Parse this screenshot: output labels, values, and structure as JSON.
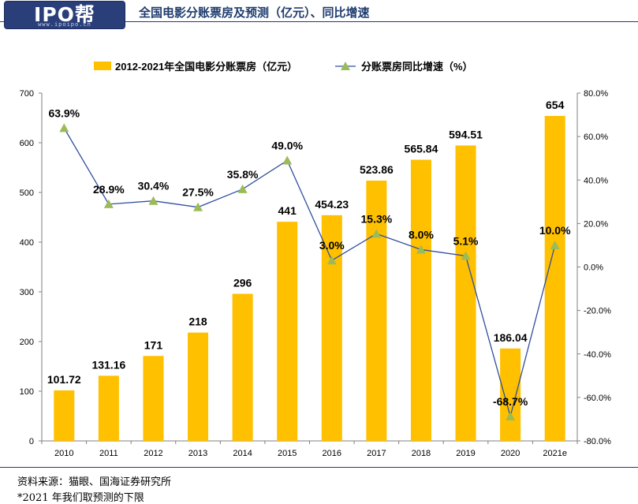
{
  "doc_title": "全国电影分账票房及预测（亿元）、同比增速",
  "logo": {
    "text": "IPO帮",
    "sub": "www.ipoipo.cn"
  },
  "footer": {
    "source": "资料来源：猫眼、国海证券研究所",
    "note": "*2021 年我们取预测的下限"
  },
  "colors": {
    "bar": "#FFC000",
    "line": "#2F4F9E",
    "marker": "#9BBB59",
    "axis": "#808080",
    "title": "#1f3c6e"
  },
  "chart_data": {
    "type": "bar",
    "categories": [
      "2010",
      "2011",
      "2012",
      "2013",
      "2014",
      "2015",
      "2016",
      "2017",
      "2018",
      "2019",
      "2020",
      "2021e"
    ],
    "series": [
      {
        "name": "2012-2021年全国电影分账票房（亿元）",
        "kind": "bar",
        "axis": "left",
        "values": [
          101.72,
          131.16,
          171,
          218,
          296,
          441,
          454.23,
          523.86,
          565.84,
          594.51,
          186.04,
          654
        ],
        "labels": [
          "101.72",
          "131.16",
          "171",
          "218",
          "296",
          "441",
          "454.23",
          "523.86",
          "565.84",
          "594.51",
          "186.04",
          "654"
        ]
      },
      {
        "name": "分账票房同比增速（%）",
        "kind": "line",
        "axis": "right",
        "values": [
          63.9,
          28.9,
          30.4,
          27.5,
          35.8,
          49.0,
          3.0,
          15.3,
          8.0,
          5.1,
          -68.7,
          10.0
        ],
        "labels": [
          "63.9%",
          "28.9%",
          "30.4%",
          "27.5%",
          "35.8%",
          "49.0%",
          "3.0%",
          "15.3%",
          "8.0%",
          "5.1%",
          "-68.7%",
          "10.0%"
        ]
      }
    ],
    "y_left": {
      "ylim": [
        0,
        700
      ],
      "ticks": [
        "0",
        "100",
        "200",
        "300",
        "400",
        "500",
        "600",
        "700"
      ]
    },
    "y_right": {
      "ylim": [
        -80,
        80
      ],
      "ticks": [
        "80.0%",
        "60.0%",
        "40.0%",
        "20.0%",
        "0.0%",
        "-20.0%",
        "-40.0%",
        "-60.0%",
        "-80.0%"
      ]
    },
    "legend_position": "top-center",
    "grid": false
  }
}
